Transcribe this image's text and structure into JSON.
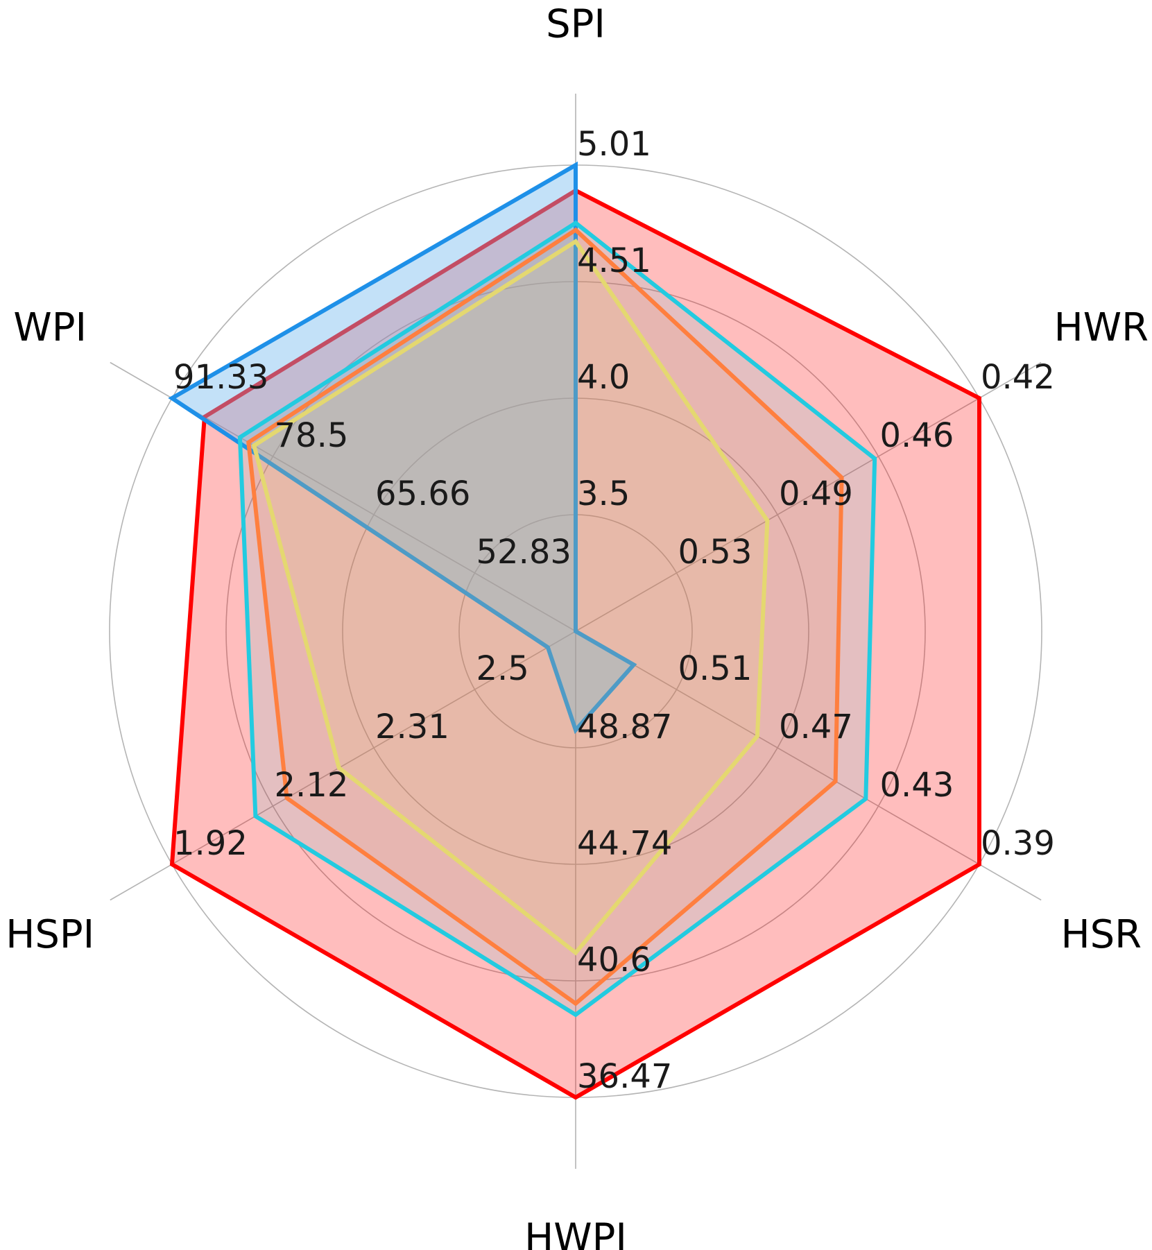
{
  "chart_data": {
    "type": "radar",
    "axes": [
      "SPI",
      "HWR",
      "HSR",
      "HWPI",
      "HSPI",
      "WPI"
    ],
    "tick_labels": {
      "SPI": [
        "3.5",
        "4.0",
        "4.51",
        "5.01"
      ],
      "HWR": [
        "0.53",
        "0.49",
        "0.46",
        "0.42"
      ],
      "HSR": [
        "0.51",
        "0.47",
        "0.43",
        "0.39"
      ],
      "HWPI": [
        "48.87",
        "44.74",
        "40.6",
        "36.47"
      ],
      "HSPI": [
        "2.5",
        "2.31",
        "2.12",
        "1.92"
      ],
      "WPI": [
        "52.83",
        "65.66",
        "78.5",
        "91.33"
      ]
    },
    "series": [
      {
        "color": "#ff0000",
        "fill": "#ff0000",
        "fill_opacity": 0.26,
        "values": [
          4.9,
          0.42,
          0.39,
          36.47,
          1.92,
          87.2
        ]
      },
      {
        "color": "#1e90e8",
        "fill": "#6fb8ef",
        "fill_opacity": 0.42,
        "values": [
          5.01,
          0.569,
          0.527,
          49.5,
          2.64,
          91.33
        ]
      },
      {
        "color": "#22cbe0",
        "fill": "#22cbe0",
        "fill_opacity": 0.12,
        "values": [
          4.76,
          0.458,
          0.435,
          39.4,
          2.08,
          82.7
        ]
      },
      {
        "color": "#ff7f3f",
        "fill": "#ff7f3f",
        "fill_opacity": 0.12,
        "values": [
          4.73,
          0.47,
          0.447,
          39.8,
          2.14,
          81.6
        ]
      },
      {
        "color": "#e4d870",
        "fill": "#e4d870",
        "fill_opacity": 0.12,
        "values": [
          4.68,
          0.497,
          0.478,
          41.6,
          2.24,
          80.9
        ]
      }
    ]
  }
}
